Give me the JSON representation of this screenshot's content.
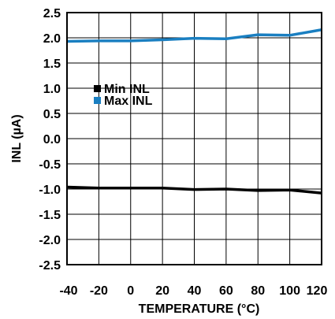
{
  "chart_data": {
    "type": "line",
    "title": "",
    "xlabel": "TEMPERATURE (°C)",
    "ylabel": "INL (µA)",
    "xlim": [
      -40,
      120
    ],
    "ylim": [
      -2.5,
      2.5
    ],
    "x_ticks": [
      "-40",
      "-20",
      "0",
      "20",
      "40",
      "60",
      "80",
      "100",
      "120"
    ],
    "y_ticks": [
      "2.5",
      "2.0",
      "1.5",
      "1.0",
      "0.5",
      "0.0",
      "-0.5",
      "-1.0",
      "-1.5",
      "-2.0",
      "-2.5"
    ],
    "grid": true,
    "legend": "upper-left-inside",
    "series": [
      {
        "name": "Min INL",
        "color": "#000000",
        "x": [
          -40,
          -20,
          0,
          20,
          40,
          60,
          80,
          100,
          120
        ],
        "y": [
          -0.96,
          -0.98,
          -0.98,
          -0.98,
          -1.01,
          -1.0,
          -1.03,
          -1.02,
          -1.08
        ]
      },
      {
        "name": "Max INL",
        "color": "#1a7fc1",
        "x": [
          -40,
          -20,
          0,
          20,
          40,
          60,
          80,
          100,
          120
        ],
        "y": [
          1.93,
          1.94,
          1.94,
          1.96,
          1.99,
          1.98,
          2.06,
          2.05,
          2.16
        ]
      }
    ]
  }
}
